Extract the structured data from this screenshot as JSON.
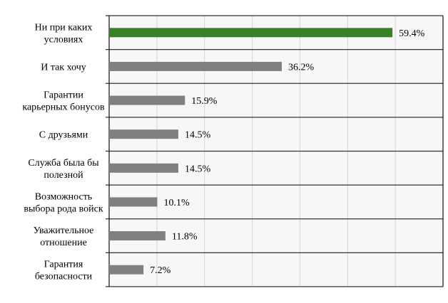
{
  "chart_data": {
    "type": "bar",
    "orientation": "horizontal",
    "categories": [
      [
        "Ни при каких",
        "условиях"
      ],
      [
        "И так хочу"
      ],
      [
        "Гарантии",
        "карьерных бонусов"
      ],
      [
        "С друзьями"
      ],
      [
        "Служба была бы",
        "полезной"
      ],
      [
        "Возможность",
        "выбора рода войск"
      ],
      [
        "Уважительное",
        "отношение"
      ],
      [
        "Гарантия",
        "безопасности"
      ]
    ],
    "values": [
      59.4,
      36.2,
      15.9,
      14.5,
      14.5,
      10.1,
      11.8,
      7.2
    ],
    "data_labels": [
      "59.4%",
      "36.2%",
      "15.9%",
      "14.5%",
      "14.5%",
      "10.1%",
      "11.8%",
      "7.2%"
    ],
    "xlim": [
      0,
      70
    ],
    "grid_step": 10,
    "grid": true,
    "xlabel": "",
    "ylabel": "",
    "title": "",
    "colors": {
      "highlight": "#37802a",
      "default": "#808080",
      "plot_background": "#f7f7f7"
    },
    "highlight_index": 0
  }
}
